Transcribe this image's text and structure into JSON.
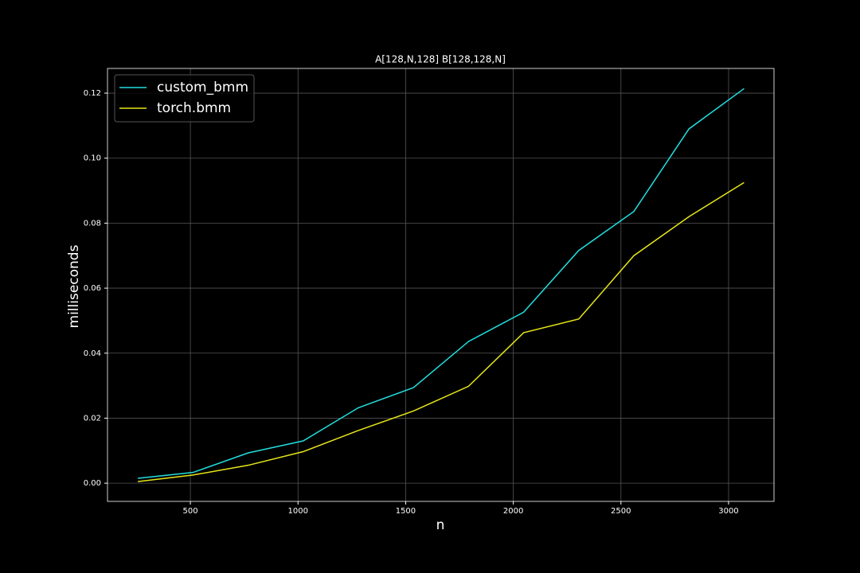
{
  "chart_data": {
    "type": "line",
    "title": "A[128,N,128] B[128,128,N]",
    "x_label": "n",
    "y_label": "milliseconds",
    "x": [
      256,
      512,
      768,
      1024,
      1280,
      1536,
      1792,
      2048,
      2304,
      2560,
      2816,
      3072
    ],
    "series": [
      {
        "name": "custom_bmm",
        "color": "#22dede",
        "values": [
          0.0015,
          0.0033,
          0.0093,
          0.013,
          0.0232,
          0.0294,
          0.0436,
          0.0526,
          0.0716,
          0.0836,
          0.109,
          0.1214
        ]
      },
      {
        "name": "torch.bmm",
        "color": "#e6e619",
        "values": [
          0.0005,
          0.0025,
          0.0055,
          0.0097,
          0.0162,
          0.0222,
          0.0298,
          0.0463,
          0.0505,
          0.07,
          0.082,
          0.0925
        ]
      }
    ],
    "xlim": [
      115,
      3211
    ],
    "xticks": [
      500,
      1000,
      1500,
      2000,
      2500,
      3000
    ],
    "ylim": [
      -0.0056,
      0.1276
    ],
    "yticks": [
      {
        "value": 0,
        "label": "0.00"
      },
      {
        "value": 0.02,
        "label": "0.02"
      },
      {
        "value": 0.04,
        "label": "0.04"
      },
      {
        "value": 0.06,
        "label": "0.06"
      },
      {
        "value": 0.08,
        "label": "0.08"
      },
      {
        "value": 0.1,
        "label": "0.10"
      },
      {
        "value": 0.12,
        "label": "0.12"
      }
    ],
    "grid": true,
    "legend": "upper-left"
  }
}
